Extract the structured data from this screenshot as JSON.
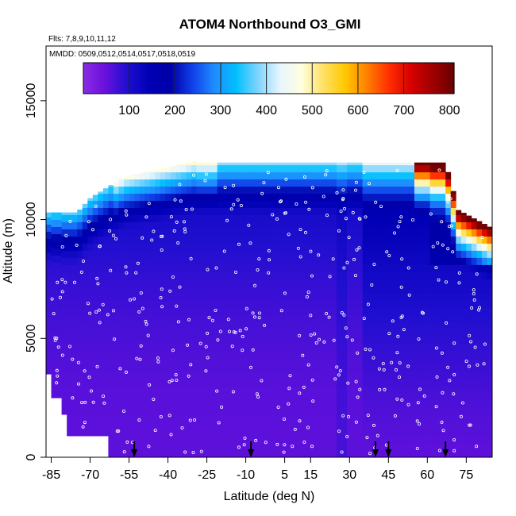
{
  "chart_data": {
    "type": "heatmap",
    "title": "ATOM4 Northbound O3_GMI",
    "flights_note": "Flts: 7,8,9,10,11,12",
    "dates_note": "MMDD: 0509,0512,0514,0517,0518,0519",
    "xlabel": "Latitude (deg N)",
    "ylabel": "Altitude (m)",
    "xlim": [
      -87,
      85
    ],
    "ylim": [
      0,
      17300
    ],
    "x_ticks": [
      -85,
      -70,
      -55,
      -40,
      -25,
      -10,
      5,
      15,
      30,
      45,
      60,
      75
    ],
    "y_ticks": [
      0,
      5000,
      10000,
      15000
    ],
    "y_tick_labels": [
      "0",
      "5000",
      "10000",
      "15000"
    ],
    "colorbar": {
      "min": 0,
      "max": 810,
      "tick_values": [
        100,
        200,
        300,
        400,
        500,
        600,
        700,
        800
      ],
      "tick_labels": [
        "100",
        "200",
        "300",
        "400",
        "500",
        "600",
        "700",
        "800"
      ],
      "colors": [
        "#8a2be2",
        "#6a10dd",
        "#1f0fd0",
        "#0000b5",
        "#0000a8",
        "#1040e8",
        "#1f8cff",
        "#00bfff",
        "#7fd4ff",
        "#e6f5ff",
        "#ffffe0",
        "#ffe066",
        "#ffc800",
        "#ff8000",
        "#ff3000",
        "#d80000",
        "#a00000",
        "#6b0000"
      ]
    },
    "field_description": "Curtain of modeled ozone (ppbv) vs latitude and altitude; low values near surface, higher values (200-800) near tropopause at high latitudes.",
    "arrow_latitudes": [
      -53,
      -8,
      40,
      45,
      67
    ],
    "flight_track_note": "White circles mark aircraft sample locations"
  }
}
